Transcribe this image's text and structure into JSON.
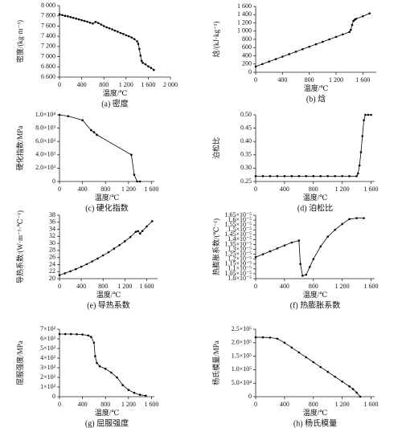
{
  "chart_data": [
    {
      "type": "line",
      "title": "(a) 密度",
      "xlabel": "温度/℃",
      "ylabel": "密度/(kg·m⁻³)",
      "color": "#000000",
      "x": [
        0,
        50,
        100,
        150,
        200,
        250,
        300,
        350,
        400,
        450,
        500,
        550,
        600,
        650,
        700,
        750,
        800,
        850,
        900,
        950,
        1000,
        1050,
        1100,
        1150,
        1200,
        1250,
        1300,
        1350,
        1400,
        1420,
        1440,
        1460,
        1480,
        1500,
        1550,
        1600,
        1650,
        1700
      ],
      "values": [
        7830,
        7815,
        7800,
        7790,
        7775,
        7760,
        7745,
        7730,
        7715,
        7700,
        7685,
        7665,
        7650,
        7680,
        7660,
        7630,
        7600,
        7575,
        7555,
        7535,
        7510,
        7490,
        7465,
        7445,
        7420,
        7400,
        7375,
        7345,
        7300,
        7250,
        7150,
        7020,
        6920,
        6880,
        6850,
        6810,
        6780,
        6740
      ],
      "xlim": [
        0,
        2000
      ],
      "xticks": [
        0,
        400,
        800,
        {
          "value": 1200,
          "label": "1 200"
        },
        {
          "value": 1600,
          "label": "1 600"
        },
        {
          "value": 2000,
          "label": "2 000"
        }
      ],
      "ylim": [
        6600,
        8000
      ],
      "yticks": [
        {
          "value": 6600,
          "label": "6 600"
        },
        {
          "value": 6800,
          "label": "6 800"
        },
        {
          "value": 7000,
          "label": "7 000"
        },
        {
          "value": 7200,
          "label": "7 200"
        },
        {
          "value": 7400,
          "label": "7 400"
        },
        {
          "value": 7600,
          "label": "7 600"
        },
        {
          "value": 7800,
          "label": "7 800"
        },
        {
          "value": 8000,
          "label": "8 000"
        }
      ]
    },
    {
      "type": "line",
      "title": "(b) 焓",
      "xlabel": "温度/℃",
      "ylabel": "焓/(kJ·kg⁻¹)",
      "color": "#000000",
      "x": [
        0,
        100,
        200,
        300,
        400,
        500,
        600,
        700,
        800,
        900,
        1000,
        1100,
        1200,
        1300,
        1400,
        1420,
        1440,
        1460,
        1480,
        1500,
        1600,
        1700
      ],
      "values": [
        140,
        200,
        260,
        320,
        380,
        440,
        500,
        560,
        620,
        680,
        740,
        800,
        860,
        920,
        980,
        1030,
        1150,
        1250,
        1280,
        1300,
        1360,
        1430
      ],
      "xlim": [
        0,
        1800
      ],
      "xticks": [
        0,
        400,
        800,
        {
          "value": 1200,
          "label": "1 200"
        },
        {
          "value": 1600,
          "label": "1 600"
        }
      ],
      "ylim": [
        0,
        1600
      ],
      "yticks": [
        0,
        200,
        400,
        600,
        800,
        {
          "value": 1000,
          "label": "1 000"
        },
        {
          "value": 1200,
          "label": "1 200"
        },
        {
          "value": 1400,
          "label": "1 400"
        },
        {
          "value": 1600,
          "label": "1 600"
        }
      ]
    },
    {
      "type": "line",
      "title": "(c) 硬化指数",
      "xlabel": "温度/℃",
      "ylabel": "硬化指数/MPa",
      "color": "#000000",
      "x": [
        0,
        150,
        400,
        550,
        600,
        650,
        1250,
        1300,
        1350,
        1400
      ],
      "values": [
        10000,
        9800,
        9200,
        7700,
        7400,
        7000,
        4000,
        1000,
        0,
        0
      ],
      "xlim": [
        0,
        1650
      ],
      "xticks": [
        0,
        400,
        800,
        {
          "value": 1200,
          "label": "1 200"
        },
        {
          "value": 1600,
          "label": "1 600"
        }
      ],
      "ylim": [
        0,
        10000
      ],
      "yticks": [
        0,
        {
          "value": 2000,
          "label": "2.0×10³"
        },
        {
          "value": 4000,
          "label": "4.0×10³"
        },
        {
          "value": 6000,
          "label": "6.0×10³"
        },
        {
          "value": 8000,
          "label": "8.0×10³"
        },
        {
          "value": 10000,
          "label": "1.0×10⁴"
        }
      ]
    },
    {
      "type": "line",
      "title": "(d) 泊松比",
      "xlabel": "温度/℃",
      "ylabel": "泊松比",
      "color": "#000000",
      "x": [
        0,
        100,
        200,
        300,
        400,
        500,
        600,
        700,
        800,
        900,
        1000,
        1100,
        1200,
        1300,
        1400,
        1420,
        1440,
        1460,
        1480,
        1500,
        1520,
        1560,
        1600
      ],
      "values": [
        0.27,
        0.27,
        0.27,
        0.27,
        0.27,
        0.27,
        0.27,
        0.27,
        0.27,
        0.27,
        0.27,
        0.27,
        0.27,
        0.27,
        0.27,
        0.28,
        0.31,
        0.36,
        0.42,
        0.48,
        0.5,
        0.5,
        0.5
      ],
      "xlim": [
        0,
        1650
      ],
      "xticks": [
        0,
        400,
        800,
        {
          "value": 1200,
          "label": "1 200"
        },
        {
          "value": 1600,
          "label": "1 600"
        }
      ],
      "ylim": [
        0.25,
        0.5
      ],
      "yticks": [
        0.25,
        {
          "value": 0.3,
          "label": "0.30"
        },
        0.35,
        {
          "value": 0.4,
          "label": "0.40"
        },
        0.45,
        {
          "value": 0.5,
          "label": "0.50"
        }
      ]
    },
    {
      "type": "line",
      "title": "(e) 导热系数",
      "xlabel": "温度/℃",
      "ylabel": "导热系数/(W·m⁻¹·℃⁻¹)",
      "color": "#000000",
      "x": [
        0,
        100,
        200,
        300,
        400,
        500,
        600,
        700,
        800,
        900,
        1000,
        1100,
        1200,
        1300,
        1400,
        1440,
        1480,
        1520,
        1600,
        1700
      ],
      "values": [
        21,
        21.5,
        22.1,
        22.7,
        23.4,
        24.1,
        24.9,
        25.7,
        26.6,
        27.5,
        28.5,
        29.5,
        30.6,
        31.8,
        33.3,
        33.5,
        32.8,
        33.5,
        34.8,
        36.3
      ],
      "xlim": [
        0,
        1800
      ],
      "xticks": [
        0,
        400,
        800,
        {
          "value": 1200,
          "label": "1 200"
        },
        {
          "value": 1600,
          "label": "1 600"
        }
      ],
      "ylim": [
        20,
        38
      ],
      "yticks": [
        20,
        22,
        24,
        26,
        28,
        30,
        32,
        34,
        36,
        38
      ]
    },
    {
      "type": "line",
      "title": "(f) 热膨胀系数",
      "xlabel": "温度/℃",
      "ylabel": "热膨胀系数/(℃⁻¹)",
      "color": "#000000",
      "x": [
        0,
        100,
        200,
        300,
        400,
        500,
        600,
        620,
        650,
        700,
        750,
        800,
        900,
        1000,
        1100,
        1200,
        1300,
        1400,
        1500
      ],
      "values": [
        1.22e-05,
        1.25e-05,
        1.28e-05,
        1.31e-05,
        1.34e-05,
        1.37e-05,
        1.39e-05,
        1.15e-05,
        1.03e-05,
        1.04e-05,
        1.12e-05,
        1.2e-05,
        1.33e-05,
        1.43e-05,
        1.5e-05,
        1.56e-05,
        1.61e-05,
        1.62e-05,
        1.62e-05
      ],
      "xlim": [
        0,
        1650
      ],
      "xticks": [
        0,
        400,
        800,
        {
          "value": 1200,
          "label": "1 200"
        },
        {
          "value": 1600,
          "label": "1 600"
        }
      ],
      "ylim": [
        1e-05,
        1.65e-05
      ],
      "yticks": [
        {
          "value": 1e-05,
          "label": "1.0×10⁻⁵"
        },
        {
          "value": 1.05e-05,
          "label": "1.05×10⁻⁵"
        },
        {
          "value": 1.1e-05,
          "label": "1.1×10⁻⁵"
        },
        {
          "value": 1.15e-05,
          "label": "1.15×10⁻⁵"
        },
        {
          "value": 1.2e-05,
          "label": "1.2×10⁻⁵"
        },
        {
          "value": 1.25e-05,
          "label": "1.25×10⁻⁵"
        },
        {
          "value": 1.3e-05,
          "label": "1.3×10⁻⁵"
        },
        {
          "value": 1.35e-05,
          "label": "1.35×10⁻⁵"
        },
        {
          "value": 1.4e-05,
          "label": "1.4×10⁻⁵"
        },
        {
          "value": 1.45e-05,
          "label": "1.45×10⁻⁵"
        },
        {
          "value": 1.5e-05,
          "label": "1.5×10⁻⁵"
        },
        {
          "value": 1.55e-05,
          "label": "1.55×10⁻⁵"
        },
        {
          "value": 1.6e-05,
          "label": "1.6×10⁻⁵"
        },
        {
          "value": 1.65e-05,
          "label": "1.65×10⁻⁵"
        }
      ]
    },
    {
      "type": "line",
      "title": "(g) 屈服强度",
      "xlabel": "温度/℃",
      "ylabel": "屈服强度/MPa",
      "color": "#000000",
      "x": [
        0,
        100,
        200,
        300,
        400,
        500,
        550,
        600,
        620,
        650,
        700,
        800,
        900,
        1000,
        1100,
        1200,
        1300,
        1400,
        1500
      ],
      "values": [
        650,
        650,
        650,
        648,
        645,
        635,
        620,
        560,
        420,
        350,
        315,
        290,
        250,
        200,
        120,
        70,
        40,
        20,
        10
      ],
      "xlim": [
        0,
        1650
      ],
      "xticks": [
        0,
        400,
        800,
        {
          "value": 1200,
          "label": "1 200"
        },
        {
          "value": 1600,
          "label": "1 600"
        }
      ],
      "ylim": [
        0,
        700
      ],
      "yticks": [
        0,
        {
          "value": 100,
          "label": "1×10²"
        },
        {
          "value": 200,
          "label": "2×10²"
        },
        {
          "value": 300,
          "label": "3×10²"
        },
        {
          "value": 400,
          "label": "4×10²"
        },
        {
          "value": 500,
          "label": "5×10²"
        },
        {
          "value": 600,
          "label": "6×10²"
        },
        {
          "value": 700,
          "label": "7×10²"
        }
      ]
    },
    {
      "type": "line",
      "title": "(h) 杨氏模量",
      "xlabel": "温度/℃",
      "ylabel": "杨氏模量/MPa",
      "color": "#000000",
      "x": [
        0,
        100,
        200,
        300,
        400,
        500,
        600,
        700,
        800,
        900,
        1000,
        1100,
        1200,
        1300,
        1350,
        1400,
        1450
      ],
      "values": [
        220000,
        220000,
        219000,
        215000,
        200000,
        182000,
        164000,
        146000,
        128000,
        110000,
        92000,
        74000,
        56000,
        38000,
        28000,
        15000,
        0
      ],
      "xlim": [
        0,
        1650
      ],
      "xticks": [
        0,
        400,
        800,
        {
          "value": 1200,
          "label": "1 200"
        },
        {
          "value": 1600,
          "label": "1 600"
        }
      ],
      "ylim": [
        0,
        250000
      ],
      "yticks": [
        0,
        {
          "value": 50000,
          "label": "5.0×10⁴"
        },
        {
          "value": 100000,
          "label": "1.0×10⁵"
        },
        {
          "value": 150000,
          "label": "1.5×10⁵"
        },
        {
          "value": 200000,
          "label": "2.0×10⁵"
        },
        {
          "value": 250000,
          "label": "2.5×10⁵"
        }
      ]
    }
  ]
}
